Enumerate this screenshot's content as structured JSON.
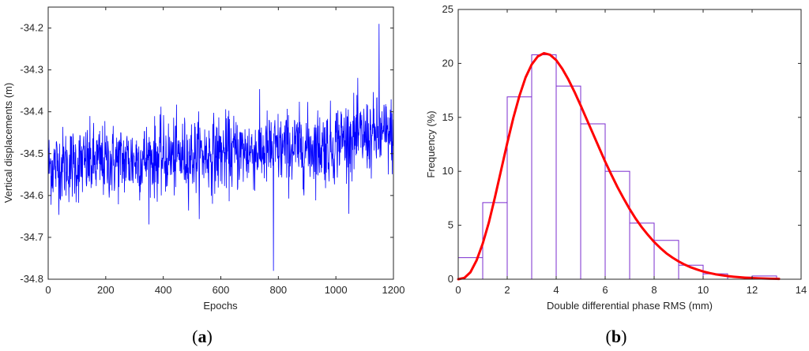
{
  "chart_data": [
    {
      "type": "line",
      "panel_label": "a",
      "xlabel": "Epochs",
      "ylabel": "Vertical displacements (m)",
      "xlim": [
        0,
        1200
      ],
      "ylim": [
        -34.8,
        -34.15
      ],
      "xticks": [
        "0",
        "200",
        "400",
        "600",
        "800",
        "1000",
        "1200"
      ],
      "yticks": [
        "-34.8",
        "-34.7",
        "-34.6",
        "-34.5",
        "-34.4",
        "-34.3",
        "-34.2"
      ],
      "grid": false,
      "series": [
        {
          "color": "#0000ff",
          "n_points": 1200,
          "trend_start": -34.53,
          "trend_end": -34.47,
          "noise_sd": 0.045,
          "min_value": -34.78,
          "max_value": -34.19
        }
      ]
    },
    {
      "type": "bar",
      "panel_label": "b",
      "xlabel": "Double differential phase RMS (mm)",
      "ylabel": "Frequency (%)",
      "xlim": [
        0,
        14
      ],
      "ylim": [
        0,
        25
      ],
      "xticks": [
        "0",
        "2",
        "4",
        "6",
        "8",
        "10",
        "12",
        "14"
      ],
      "yticks": [
        "0",
        "5",
        "10",
        "15",
        "20",
        "25"
      ],
      "grid": false,
      "bins": [
        {
          "x0": 0,
          "x1": 1,
          "value": 2.0
        },
        {
          "x0": 1,
          "x1": 2,
          "value": 7.1
        },
        {
          "x0": 2,
          "x1": 3,
          "value": 16.9
        },
        {
          "x0": 3,
          "x1": 4,
          "value": 20.8
        },
        {
          "x0": 4,
          "x1": 5,
          "value": 17.9
        },
        {
          "x0": 5,
          "x1": 6,
          "value": 14.4
        },
        {
          "x0": 6,
          "x1": 7,
          "value": 10.0
        },
        {
          "x0": 7,
          "x1": 8,
          "value": 5.2
        },
        {
          "x0": 8,
          "x1": 9,
          "value": 3.6
        },
        {
          "x0": 9,
          "x1": 10,
          "value": 1.3
        },
        {
          "x0": 10,
          "x1": 11,
          "value": 0.5
        },
        {
          "x0": 11,
          "x1": 12,
          "value": 0.2
        },
        {
          "x0": 12,
          "x1": 13,
          "value": 0.3
        }
      ],
      "bar_color": "#7b2ccf",
      "fit_curve": {
        "color": "#ff0000",
        "x": [
          0,
          0.25,
          0.5,
          0.75,
          1,
          1.25,
          1.5,
          1.75,
          2,
          2.25,
          2.5,
          2.75,
          3,
          3.25,
          3.5,
          3.75,
          4,
          4.25,
          4.5,
          4.75,
          5,
          5.25,
          5.5,
          5.75,
          6,
          6.25,
          6.5,
          6.75,
          7,
          7.25,
          7.5,
          7.75,
          8,
          8.25,
          8.5,
          8.75,
          9,
          9.25,
          9.5,
          9.75,
          10,
          10.25,
          10.5,
          10.75,
          11,
          11.25,
          11.5,
          11.75,
          12,
          12.25,
          12.5,
          12.75,
          13,
          13.1
        ],
        "y": [
          0,
          0.12,
          0.65,
          1.75,
          3.3,
          5.25,
          7.6,
          10.1,
          12.6,
          14.95,
          17.0,
          18.7,
          19.9,
          20.65,
          20.95,
          20.8,
          20.3,
          19.5,
          18.5,
          17.35,
          16.1,
          14.8,
          13.5,
          12.2,
          10.9,
          9.7,
          8.55,
          7.5,
          6.5,
          5.6,
          4.8,
          4.1,
          3.45,
          2.9,
          2.4,
          2.0,
          1.65,
          1.35,
          1.1,
          0.9,
          0.72,
          0.58,
          0.46,
          0.37,
          0.29,
          0.23,
          0.18,
          0.14,
          0.11,
          0.08,
          0.06,
          0.05,
          0.04,
          0.03
        ]
      }
    }
  ]
}
